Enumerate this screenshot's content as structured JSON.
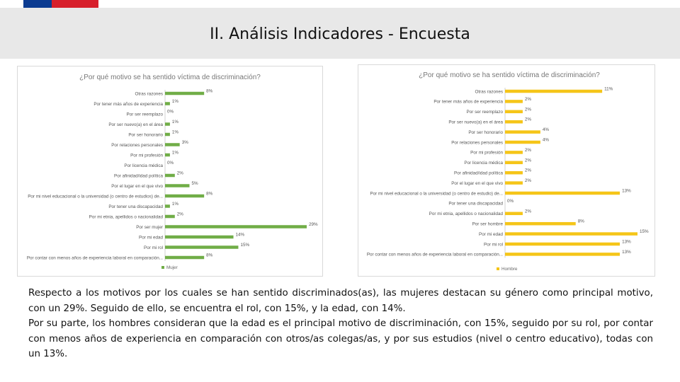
{
  "page": {
    "title": "II. Análisis Indicadores - Encuesta",
    "colors": {
      "header_bg": "#e8e8e8",
      "flag_blue": "#0b3b91",
      "flag_red": "#d71f2b"
    },
    "paragraphs": [
      "Respecto a los motivos por los cuales se han sentido discriminados(as), las mujeres destacan su género como principal motivo, con un 29%. Seguido de ello, se encuentra el rol, con 15%, y la edad, con 14%.",
      "Por su parte, los hombres consideran que la edad es el principal motivo de discriminación, con 15%, seguido por su rol, por contar con menos años de experiencia en comparación con otros/as colegas/as, y por sus estudios (nivel o centro educativo), todas con un 13%."
    ]
  },
  "chart_data": [
    {
      "type": "bar",
      "orientation": "horizontal",
      "title": "¿Por qué motivo se ha sentido víctima de discriminación?",
      "categories": [
        "Otras razones",
        "Por tener más años de experiencia",
        "Por ser reemplazo",
        "Por ser nuevo(a) en el área",
        "Por ser honorario",
        "Por relaciones personales",
        "Por mi profesión",
        "Por licencia médica",
        "Por afinidad/idad política",
        "Por el lugar en el que vivo",
        "Por mi nivel educacional o la universidad (o centro de estudios) de...",
        "Por tener una discapacidad",
        "Por mi etnia, apellidos o nacionalidad",
        "Por ser mujer",
        "Por mi edad",
        "Por mi rol",
        "Por contar con menos años de experiencia laboral en comparación..."
      ],
      "series": [
        {
          "name": "Mujer",
          "values": [
            8,
            1,
            0,
            1,
            1,
            3,
            1,
            0,
            2,
            5,
            8,
            1,
            2,
            29,
            14,
            15,
            8
          ]
        }
      ],
      "labels": [
        "8%",
        "1%",
        "0%",
        "1%",
        "1%",
        "3%",
        "1%",
        "0%",
        "2%",
        "5%",
        "8%",
        "1%",
        "2%",
        "29%",
        "14%",
        "15%",
        "8%"
      ],
      "color": "#70ad47",
      "xlim": [
        0,
        29
      ],
      "legend": "bottom",
      "grid": false
    },
    {
      "type": "bar",
      "orientation": "horizontal",
      "title": "¿Por qué motivo se ha sentido víctima de discriminación?",
      "categories": [
        "Otras razones",
        "Por tener más años de experiencia",
        "Por ser reemplazo",
        "Por ser nuevo(a) en el área",
        "Por ser honorario",
        "Por relaciones personales",
        "Por mi profesión",
        "Por licencia médica",
        "Por afinidad/idad política",
        "Por el lugar en el que vivo",
        "Por mi nivel educacional o la universidad (o centro de estudio) de...",
        "Por tener una discapacidad",
        "Por mi etnia, apellidos o nacionalidad",
        "Por ser hombre",
        "Por mi edad",
        "Por mi rol",
        "Por contar con menos años de experiencia laboral en comparación..."
      ],
      "series": [
        {
          "name": "Hombre",
          "values": [
            11,
            2,
            2,
            2,
            4,
            4,
            2,
            2,
            2,
            2,
            13,
            0,
            2,
            8,
            15,
            13,
            13
          ]
        }
      ],
      "labels": [
        "11%",
        "2%",
        "2%",
        "2%",
        "4%",
        "4%",
        "2%",
        "2%",
        "2%",
        "2%",
        "13%",
        "0%",
        "2%",
        "8%",
        "15%",
        "13%",
        "13%"
      ],
      "color": "#f5c518",
      "xlim": [
        0,
        15
      ],
      "legend": "bottom",
      "grid": false
    }
  ]
}
